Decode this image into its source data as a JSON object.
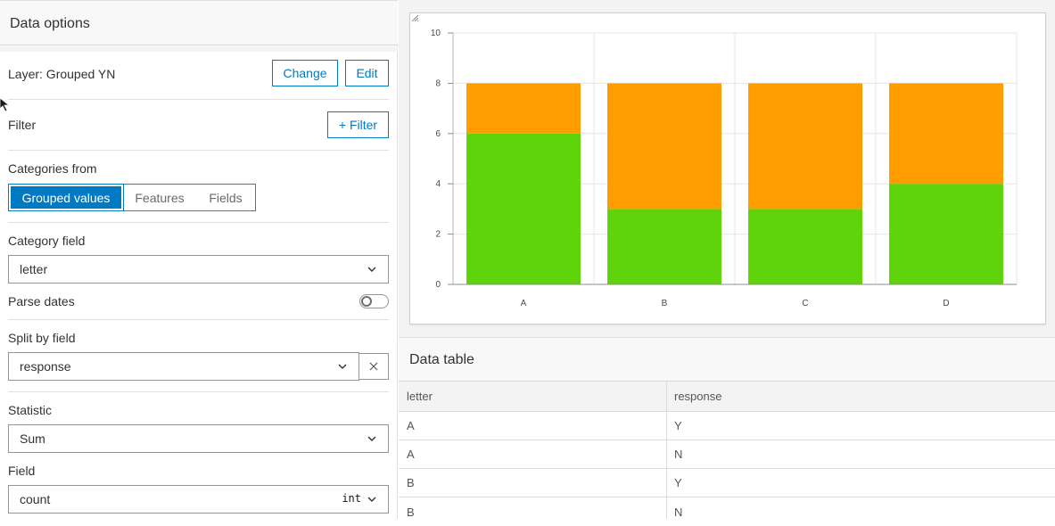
{
  "panel": {
    "title": "Data options",
    "layer_label": "Layer: Grouped YN",
    "change_label": "Change",
    "edit_label": "Edit",
    "filter_label": "Filter",
    "add_filter_label": "+ Filter",
    "categories_label": "Categories from",
    "segments": [
      "Grouped values",
      "Features",
      "Fields"
    ],
    "active_segment": "Grouped values",
    "category_field_label": "Category field",
    "category_field_value": "letter",
    "parse_dates_label": "Parse dates",
    "parse_dates_on": false,
    "split_by_label": "Split by field",
    "split_by_value": "response",
    "statistic_label": "Statistic",
    "statistic_value": "Sum",
    "field_label": "Field",
    "field_value": "count",
    "field_type_badge": "int"
  },
  "chart_data": {
    "type": "bar",
    "stacked": true,
    "categories": [
      "A",
      "B",
      "C",
      "D"
    ],
    "series": [
      {
        "values": [
          6,
          3,
          3,
          4
        ],
        "color": "#5fd40a"
      },
      {
        "values": [
          2,
          5,
          5,
          4
        ],
        "color": "#ff9d00"
      }
    ],
    "ylim": [
      0,
      10
    ],
    "yticks": [
      "0",
      "2",
      "4",
      "6",
      "8",
      "10"
    ],
    "grid": true,
    "legend": "none"
  },
  "data_table": {
    "title": "Data table",
    "columns": [
      "letter",
      "response"
    ],
    "rows": [
      [
        "A",
        "Y"
      ],
      [
        "A",
        "N"
      ],
      [
        "B",
        "Y"
      ],
      [
        "B",
        "N"
      ]
    ]
  }
}
